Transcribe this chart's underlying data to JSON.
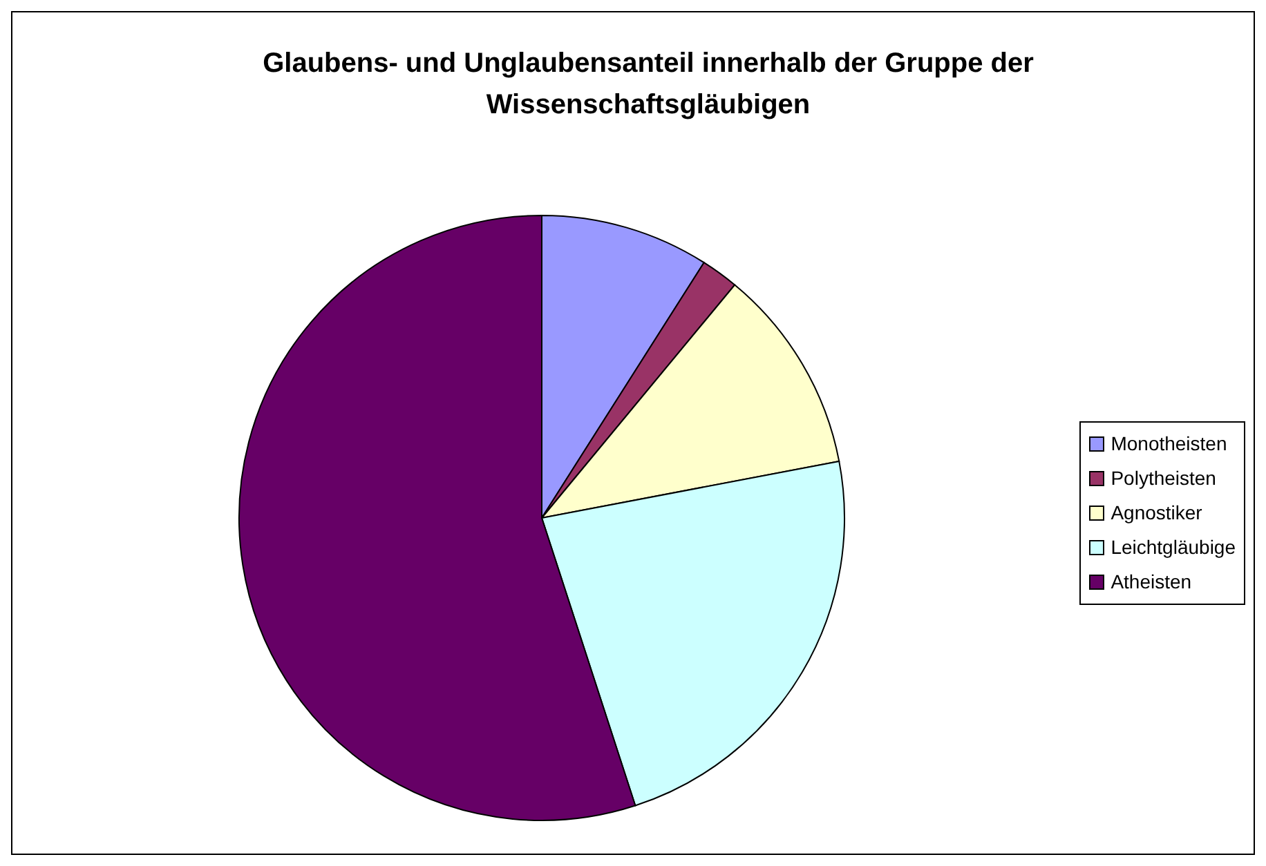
{
  "chart_data": {
    "type": "pie",
    "title": "Glaubens- und Unglaubensanteil innerhalb der Gruppe der Wissenschaftsgläubigen",
    "categories": [
      "Monotheisten",
      "Polytheisten",
      "Agnostiker",
      "Leichtgläubige",
      "Atheisten"
    ],
    "values": [
      9,
      2,
      11,
      23,
      55
    ],
    "colors": [
      "#9999ff",
      "#993366",
      "#ffffcc",
      "#ccffff",
      "#660066"
    ],
    "legend": "right"
  }
}
